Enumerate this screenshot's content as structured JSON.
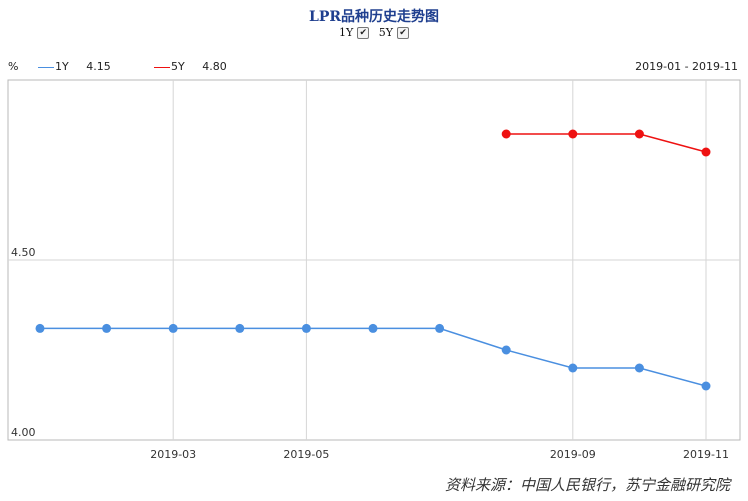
{
  "chart_data": {
    "type": "line",
    "title": "LPR品种历史走势图",
    "toggles": [
      {
        "label": "1Y",
        "checked": true
      },
      {
        "label": "5Y",
        "checked": true
      }
    ],
    "unit": "%",
    "date_range": "2019-01 - 2019-11",
    "x": [
      "2019-01",
      "2019-02",
      "2019-03",
      "2019-04",
      "2019-05",
      "2019-06",
      "2019-07",
      "2019-08",
      "2019-09",
      "2019-10",
      "2019-11"
    ],
    "x_tick_labels": [
      "2019-03",
      "2019-05",
      "2019-09",
      "2019-11"
    ],
    "series": [
      {
        "name": "1Y",
        "latest": "4.15",
        "color": "#4a8fe0",
        "values": [
          4.31,
          4.31,
          4.31,
          4.31,
          4.31,
          4.31,
          4.31,
          4.25,
          4.2,
          4.2,
          4.15
        ]
      },
      {
        "name": "5Y",
        "latest": "4.80",
        "color": "#ee1111",
        "values": [
          null,
          null,
          null,
          null,
          null,
          null,
          null,
          4.85,
          4.85,
          4.85,
          4.8
        ]
      }
    ],
    "ylim": [
      4.0,
      5.0
    ],
    "y_tick_labels": [
      "4.00",
      "4.50"
    ],
    "grid": true
  },
  "source": "资料来源：中国人民银行，苏宁金融研究院"
}
